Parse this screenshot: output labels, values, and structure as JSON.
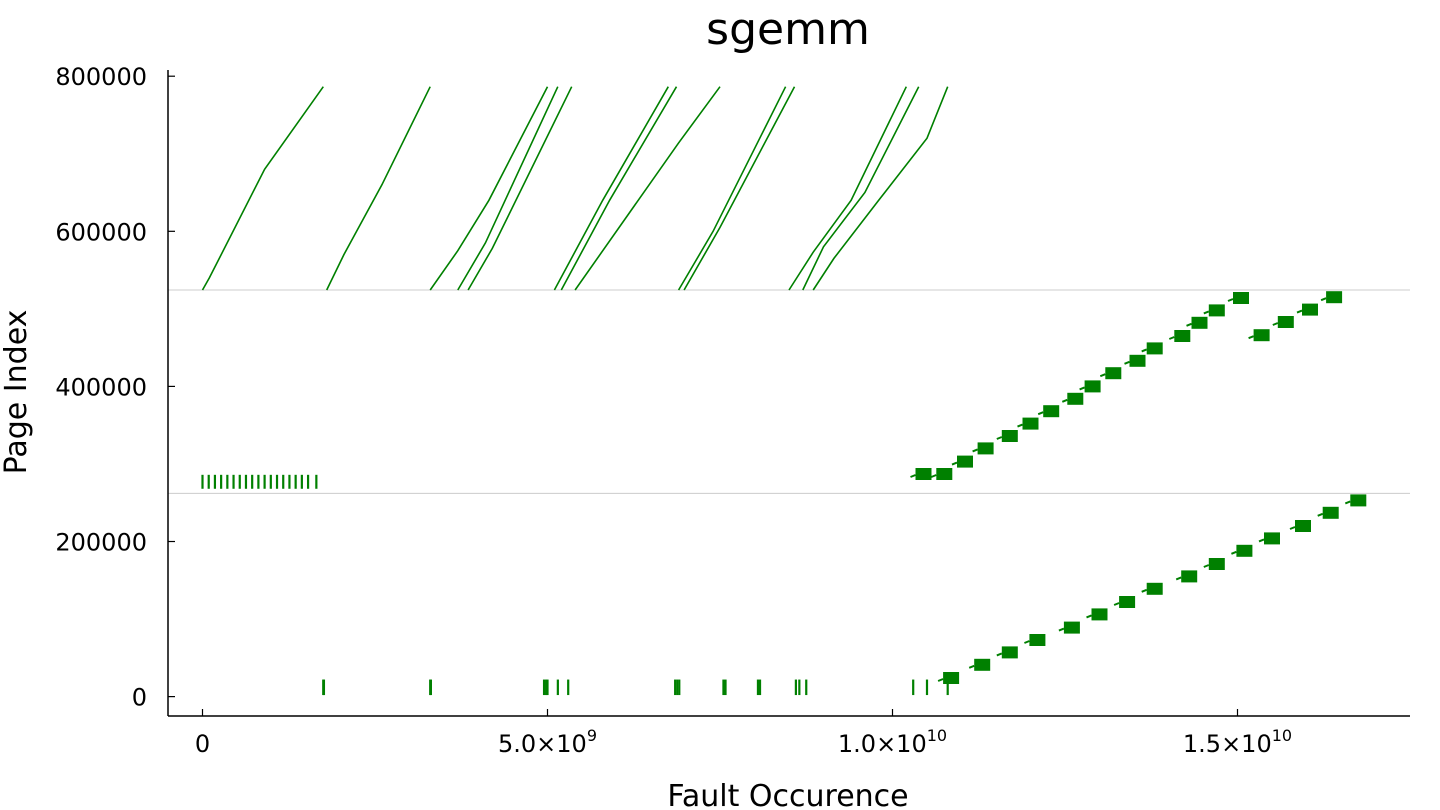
{
  "chart_data": {
    "type": "scatter",
    "title": "sgemm",
    "xlabel": "Fault Occurence",
    "ylabel": "Page Index",
    "xlim": [
      -500000000,
      17500000000
    ],
    "ylim": [
      -25000,
      808000
    ],
    "grid": false,
    "legend": "none",
    "color": "#008000",
    "x_ticks": [
      {
        "value": 0,
        "mant": "0",
        "exp": ""
      },
      {
        "value": 5000000000,
        "mant": "5.0×10",
        "exp": "9"
      },
      {
        "value": 10000000000,
        "mant": "1.0×10",
        "exp": "10"
      },
      {
        "value": 15000000000,
        "mant": "1.5×10",
        "exp": "10"
      }
    ],
    "y_ticks": [
      {
        "value": 0,
        "label": "0"
      },
      {
        "value": 200000,
        "label": "200000"
      },
      {
        "value": 400000,
        "label": "400000"
      },
      {
        "value": 600000,
        "label": "600000"
      },
      {
        "value": 800000,
        "label": "800000"
      }
    ],
    "reference_lines_y": [
      524288,
      262144
    ],
    "diagonal_streams": [
      [
        [
          0,
          524288
        ],
        [
          100000000,
          540000
        ],
        [
          900000000,
          680000
        ],
        [
          1750000000,
          786432
        ]
      ],
      [
        [
          1800000000,
          524288
        ],
        [
          2050000000,
          570000
        ],
        [
          2600000000,
          660000
        ],
        [
          3300000000,
          786432
        ]
      ],
      [
        [
          3300000000,
          524288
        ],
        [
          3700000000,
          575000
        ],
        [
          4150000000,
          640000
        ],
        [
          5000000000,
          786432
        ]
      ],
      [
        [
          3700000000,
          524288
        ],
        [
          4100000000,
          585000
        ],
        [
          5150000000,
          786432
        ]
      ],
      [
        [
          3850000000,
          524288
        ],
        [
          4200000000,
          578000
        ],
        [
          5350000000,
          786432
        ]
      ],
      [
        [
          5100000000,
          524288
        ],
        [
          5800000000,
          640000
        ],
        [
          6750000000,
          786432
        ]
      ],
      [
        [
          5200000000,
          524288
        ],
        [
          5900000000,
          640000
        ],
        [
          6870000000,
          786432
        ]
      ],
      [
        [
          5400000000,
          524288
        ],
        [
          6900000000,
          714000
        ],
        [
          7500000000,
          786432
        ]
      ],
      [
        [
          6900000000,
          524288
        ],
        [
          7400000000,
          600000
        ],
        [
          8450000000,
          786432
        ]
      ],
      [
        [
          6980000000,
          524288
        ],
        [
          7500000000,
          605000
        ],
        [
          8580000000,
          786432
        ]
      ],
      [
        [
          8500000000,
          524288
        ],
        [
          8850000000,
          573000
        ],
        [
          9400000000,
          640000
        ],
        [
          10200000000,
          786432
        ]
      ],
      [
        [
          8700000000,
          524288
        ],
        [
          9000000000,
          580000
        ],
        [
          9600000000,
          650000
        ],
        [
          10380000000,
          786432
        ]
      ],
      [
        [
          8850000000,
          524288
        ],
        [
          9150000000,
          565000
        ],
        [
          9800000000,
          640000
        ],
        [
          10500000000,
          720000
        ],
        [
          10800000000,
          786432
        ]
      ]
    ],
    "tick_mark_series": [
      {
        "y_range": [
          268000,
          286000
        ],
        "x": [
          0,
          90000000,
          180000000,
          270000000,
          360000000,
          450000000,
          540000000,
          630000000,
          720000000,
          810000000,
          900000000,
          990000000,
          1080000000,
          1170000000,
          1260000000,
          1350000000,
          1440000000,
          1530000000,
          1650000000
        ]
      },
      {
        "y_range": [
          2000,
          22000
        ],
        "x": [
          1750000000,
          1760000000,
          3300000000,
          3310000000,
          4950000000,
          4980000000,
          5000000000,
          5150000000,
          5300000000,
          6850000000,
          6880000000,
          6910000000,
          7550000000,
          7580000000,
          8050000000,
          8080000000,
          8600000000,
          8650000000,
          8750000000,
          10300000000,
          10500000000,
          10800000000
        ]
      }
    ],
    "blocks_upper": [
      [
        10450000000,
        287000
      ],
      [
        10750000000,
        287000
      ],
      [
        11050000000,
        303000
      ],
      [
        11350000000,
        320000
      ],
      [
        11700000000,
        336000
      ],
      [
        12000000000,
        352000
      ],
      [
        12300000000,
        368000
      ],
      [
        12650000000,
        384000
      ],
      [
        12900000000,
        400000
      ],
      [
        13200000000,
        417000
      ],
      [
        13550000000,
        433000
      ],
      [
        13800000000,
        449000
      ],
      [
        14200000000,
        465000
      ],
      [
        14450000000,
        482000
      ],
      [
        14700000000,
        498000
      ],
      [
        15050000000,
        514000
      ],
      [
        15350000000,
        466000
      ],
      [
        15700000000,
        483000
      ],
      [
        16050000000,
        499000
      ],
      [
        16400000000,
        515000
      ]
    ],
    "blocks_lower": [
      [
        10850000000,
        24000
      ],
      [
        11300000000,
        41000
      ],
      [
        11700000000,
        57000
      ],
      [
        12100000000,
        73000
      ],
      [
        12600000000,
        89000
      ],
      [
        13000000000,
        106000
      ],
      [
        13400000000,
        122000
      ],
      [
        13800000000,
        139000
      ],
      [
        14300000000,
        155000
      ],
      [
        14700000000,
        171000
      ],
      [
        15100000000,
        188000
      ],
      [
        15500000000,
        204000
      ],
      [
        15950000000,
        220000
      ],
      [
        16350000000,
        237000
      ],
      [
        16750000000,
        253000
      ]
    ]
  }
}
